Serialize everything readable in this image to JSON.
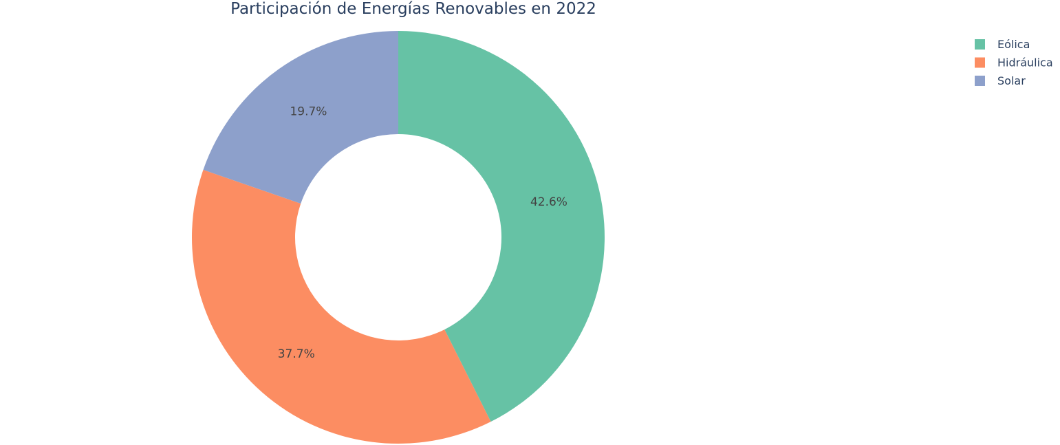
{
  "chart_data": {
    "type": "pie",
    "hole": true,
    "title": "Participación de Energías Renovables en 2022",
    "categories": [
      "Eólica",
      "Hidráulica",
      "Solar"
    ],
    "values": [
      42.6,
      37.7,
      19.7
    ],
    "labels": [
      "42.6%",
      "37.7%",
      "19.7%"
    ],
    "colors": [
      "#66c2a5",
      "#fc8d62",
      "#8da0cb"
    ],
    "legend": {
      "position": "top-right",
      "order": [
        "Eólica",
        "Hidráulica",
        "Solar"
      ]
    },
    "direction": "clockwise",
    "start": "top"
  }
}
